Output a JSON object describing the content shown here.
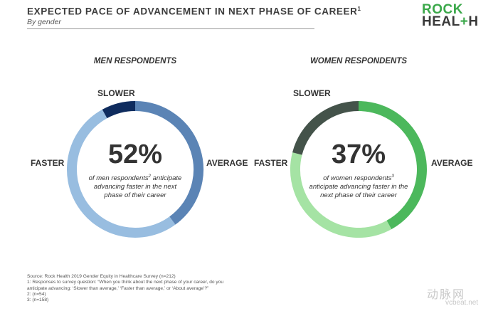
{
  "header": {
    "title": "EXPECTED PACE OF ADVANCEMENT IN NEXT PHASE OF CAREER",
    "title_sup": "1",
    "subtitle": "By gender"
  },
  "logo": {
    "line1": "ROCK",
    "line2_a": "HEAL",
    "line2_plus": "+",
    "line2_b": "H"
  },
  "chart_data": [
    {
      "type": "pie",
      "title": "MEN RESPONDENTS",
      "headline_value": "52%",
      "description_parts": [
        "of men respondents",
        "2",
        " anticipate advancing faster in the next phase of their career"
      ],
      "slices": [
        {
          "label": "AVERAGE",
          "value": 40,
          "color": "#5b84b5"
        },
        {
          "label": "FASTER",
          "value": 52,
          "color": "#98bde0"
        },
        {
          "label": "SLOWER",
          "value": 8,
          "color": "#0f2c5e"
        }
      ],
      "legend": "direct-labels"
    },
    {
      "type": "pie",
      "title": "WOMEN RESPONDENTS",
      "headline_value": "37%",
      "description_parts": [
        "of women respondents",
        "3",
        " anticipate advancing faster in the next phase of their career"
      ],
      "slices": [
        {
          "label": "AVERAGE",
          "value": 42,
          "color": "#4cb85c"
        },
        {
          "label": "FASTER",
          "value": 37,
          "color": "#a5e3a4"
        },
        {
          "label": "SLOWER",
          "value": 21,
          "color": "#44534a"
        }
      ],
      "legend": "direct-labels"
    }
  ],
  "footnotes": [
    "Source: Rock Health 2019 Gender Equity in Healthcare Survey (n=212)",
    "1: Responses to survey question: “When you think about the next phase of your career, do you",
    "anticipate advancing: ‘Slower than average,’ ‘Faster than average,’ or ‘About average’?”",
    "2: (n=54)",
    "3: (n=158)"
  ],
  "watermark": {
    "name": "动脉网",
    "url": "vcbeat.net"
  }
}
